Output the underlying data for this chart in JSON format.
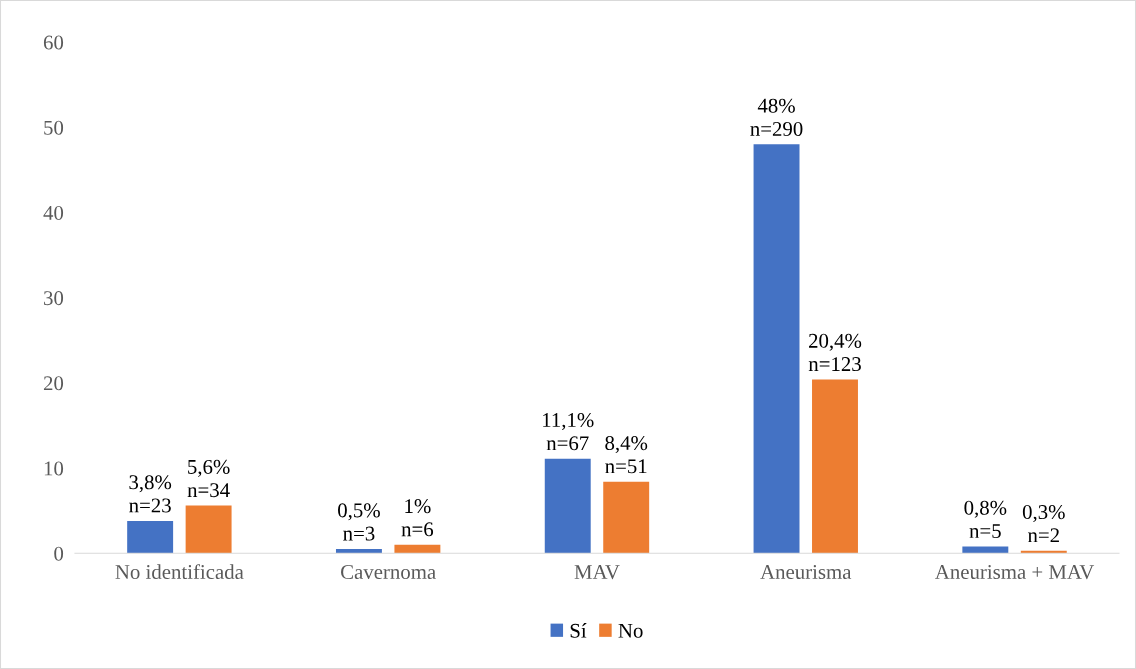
{
  "chart_data": {
    "type": "bar",
    "categories": [
      "No identificada",
      "Cavernoma",
      "MAV",
      "Aneurisma",
      "Aneurisma + MAV"
    ],
    "series": [
      {
        "name": "Sí",
        "color": "#4472c4",
        "values": [
          3.8,
          0.5,
          11.1,
          48,
          0.8
        ],
        "value_labels": [
          "3,8%\nn=23",
          "0,5%\nn=3",
          "11,1%\nn=67",
          "48%\nn=290",
          "0,8%\nn=5"
        ]
      },
      {
        "name": "No",
        "color": "#ed7d31",
        "values": [
          5.6,
          1,
          8.4,
          20.4,
          0.3
        ],
        "value_labels": [
          "5,6%\nn=34",
          "1%\nn=6",
          "8,4%\nn=51",
          "20,4%\nn=123",
          "0,3%\nn=2"
        ]
      }
    ],
    "ylim": [
      0,
      60
    ],
    "yticks": [
      0,
      10,
      20,
      30,
      40,
      50,
      60
    ],
    "grid": false,
    "legend": "bottom"
  }
}
